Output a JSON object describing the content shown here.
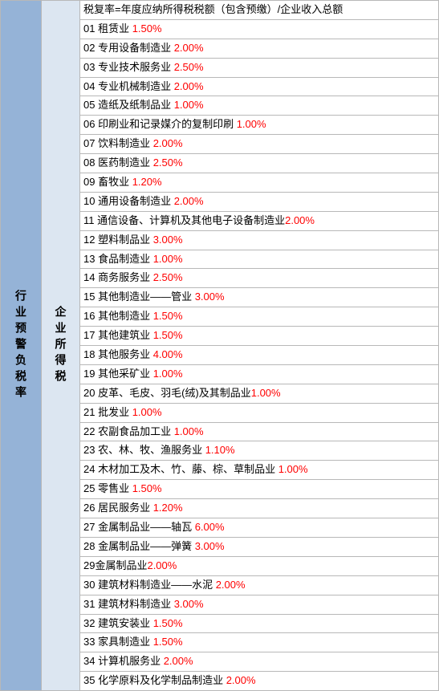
{
  "leftHeader": "行业预警负税率",
  "midHeader": "企业所得税",
  "formulaRow": {
    "text": "税复率=年度应纳所得税税额（包含预缴）/企业收入总额",
    "rate": ""
  },
  "rows": [
    {
      "num": "01",
      "name": "租赁业",
      "rate": "1.50%",
      "space": " "
    },
    {
      "num": "02",
      "name": "专用设备制造业",
      "rate": "2.00%",
      "space": " "
    },
    {
      "num": "03",
      "name": "专业技术服务业",
      "rate": "2.50%",
      "space": " "
    },
    {
      "num": "04",
      "name": "专业机械制造业",
      "rate": "2.00%",
      "space": " "
    },
    {
      "num": "05",
      "name": "造纸及纸制品业",
      "rate": "1.00%",
      "space": " "
    },
    {
      "num": "06",
      "name": "印刷业和记录媒介的复制印刷",
      "rate": "1.00%",
      "space": " "
    },
    {
      "num": "07",
      "name": "饮料制造业",
      "rate": "2.00%",
      "space": " "
    },
    {
      "num": "08",
      "name": "医药制造业",
      "rate": "2.50%",
      "space": " "
    },
    {
      "num": "09",
      "name": "畜牧业",
      "rate": "1.20%",
      "space": " "
    },
    {
      "num": "10",
      "name": "通用设备制造业",
      "rate": "2.00%",
      "space": " "
    },
    {
      "num": "11",
      "name": "通信设备、计算机及其他电子设备制造业",
      "rate": "2.00%",
      "space": ""
    },
    {
      "num": "12",
      "name": "塑料制品业",
      "rate": "3.00%",
      "space": " "
    },
    {
      "num": "13",
      "name": "食品制造业",
      "rate": "1.00%",
      "space": " "
    },
    {
      "num": "14",
      "name": "商务服务业",
      "rate": "2.50%",
      "space": " "
    },
    {
      "num": "15",
      "name": "其他制造业——管业",
      "rate": "3.00%",
      "space": " "
    },
    {
      "num": "16",
      "name": "其他制造业",
      "rate": "1.50%",
      "space": " "
    },
    {
      "num": "17",
      "name": "其他建筑业",
      "rate": "1.50%",
      "space": " "
    },
    {
      "num": "18",
      "name": "其他服务业",
      "rate": "4.00%",
      "space": " "
    },
    {
      "num": "19",
      "name": "其他采矿业",
      "rate": "1.00%",
      "space": " "
    },
    {
      "num": "20",
      "name": "皮革、毛皮、羽毛(绒)及其制品业",
      "rate": "1.00%",
      "space": ""
    },
    {
      "num": "21",
      "name": "批发业",
      "rate": "1.00%",
      "space": " "
    },
    {
      "num": "22",
      "name": "农副食品加工业",
      "rate": "1.00%",
      "space": " "
    },
    {
      "num": "23",
      "name": "农、林、牧、渔服务业",
      "rate": "1.10%",
      "space": " "
    },
    {
      "num": "24",
      "name": "木材加工及木、竹、藤、棕、草制品业",
      "rate": "1.00%",
      "space": " "
    },
    {
      "num": "25",
      "name": "零售业",
      "rate": "1.50%",
      "space": " "
    },
    {
      "num": "26",
      "name": "居民服务业",
      "rate": "1.20%",
      "space": " "
    },
    {
      "num": "27",
      "name": "金属制品业——轴瓦",
      "rate": "6.00%",
      "space": " "
    },
    {
      "num": "28",
      "name": "金属制品业——弹簧",
      "rate": "3.00%",
      "space": " "
    },
    {
      "num": "29",
      "name": "金属制品业",
      "rate": "2.00%",
      "space": ""
    },
    {
      "num": "30",
      "name": "建筑材料制造业——水泥",
      "rate": "2.00%",
      "space": " "
    },
    {
      "num": "31",
      "name": "建筑材料制造业",
      "rate": "3.00%",
      "space": " "
    },
    {
      "num": "32",
      "name": "建筑安装业",
      "rate": "1.50%",
      "space": " "
    },
    {
      "num": "33",
      "name": "家具制造业",
      "rate": "1.50%",
      "space": " "
    },
    {
      "num": "34",
      "name": "计算机服务业",
      "rate": "2.00%",
      "space": " "
    },
    {
      "num": "35",
      "name": "化学原料及化学制品制造业",
      "rate": "2.00%",
      "space": " "
    }
  ],
  "colors": {
    "leftBg": "#95b3d7",
    "midBg": "#dce6f1",
    "rateColor": "#ff0000",
    "borderColor": "#b8b8b8"
  }
}
